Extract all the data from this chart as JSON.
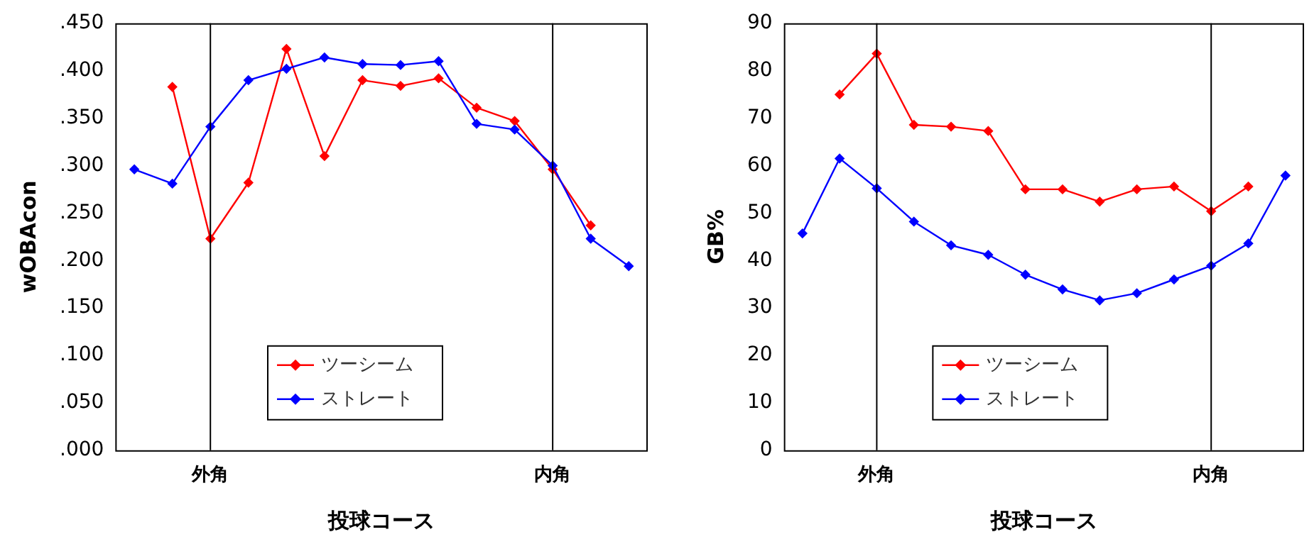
{
  "chart_data": [
    {
      "type": "line",
      "xlabel": "投球コース",
      "ylabel": "wOBAcon",
      "categories": [
        null,
        null,
        "外角",
        null,
        null,
        null,
        null,
        null,
        null,
        null,
        null,
        "内角",
        null,
        null
      ],
      "series": [
        {
          "name": "ツーシーム",
          "color": "#ff0000",
          "values": [
            null,
            0.383,
            0.223,
            0.282,
            0.423,
            0.31,
            0.39,
            0.384,
            0.392,
            0.361,
            0.347,
            0.296,
            0.237,
            null
          ]
        },
        {
          "name": "ストレート",
          "color": "#0000ff",
          "values": [
            0.296,
            0.281,
            0.341,
            0.39,
            0.402,
            0.414,
            0.407,
            0.406,
            0.41,
            0.344,
            0.338,
            0.3,
            0.223,
            0.194
          ]
        }
      ],
      "ylim": [
        0,
        0.45
      ],
      "yticks": [
        {
          "value": 0,
          "label": ".000"
        },
        {
          "value": 0.05,
          "label": ".050"
        },
        {
          "value": 0.1,
          "label": ".100"
        },
        {
          "value": 0.15,
          "label": ".150"
        },
        {
          "value": 0.2,
          "label": ".200"
        },
        {
          "value": 0.25,
          "label": ".250"
        },
        {
          "value": 0.3,
          "label": ".300"
        },
        {
          "value": 0.35,
          "label": ".350"
        },
        {
          "value": 0.4,
          "label": ".400"
        },
        {
          "value": 0.45,
          "label": ".450"
        }
      ],
      "ref_lines": [
        {
          "axis": "x",
          "value": "外角",
          "color": "#000000"
        },
        {
          "axis": "x",
          "value": "内角",
          "color": "#000000"
        }
      ],
      "grid": false,
      "legend": "bottom",
      "marker": "diamond",
      "line_style": "solid"
    },
    {
      "type": "line",
      "xlabel": "投球コース",
      "ylabel": "GB%",
      "categories": [
        null,
        null,
        "外角",
        null,
        null,
        null,
        null,
        null,
        null,
        null,
        null,
        "内角",
        null,
        null
      ],
      "series": [
        {
          "name": "ツーシーム",
          "color": "#ff0000",
          "values": [
            null,
            75.0,
            83.6,
            68.6,
            68.2,
            67.3,
            55.0,
            55.0,
            52.4,
            55.0,
            55.6,
            50.4,
            55.6,
            null
          ]
        },
        {
          "name": "ストレート",
          "color": "#0000ff",
          "values": [
            45.7,
            61.5,
            55.2,
            48.2,
            43.2,
            41.2,
            37.0,
            33.9,
            31.6,
            33.1,
            36.0,
            38.9,
            43.6,
            57.9
          ]
        }
      ],
      "ylim": [
        0,
        90
      ],
      "yticks": [
        0,
        10,
        20,
        30,
        40,
        50,
        60,
        70,
        80,
        90
      ],
      "ref_lines": [
        {
          "axis": "x",
          "value": "外角",
          "color": "#000000"
        },
        {
          "axis": "x",
          "value": "内角",
          "color": "#000000"
        }
      ],
      "grid": false,
      "legend": "bottom",
      "marker": "diamond",
      "line_style": "solid"
    }
  ]
}
